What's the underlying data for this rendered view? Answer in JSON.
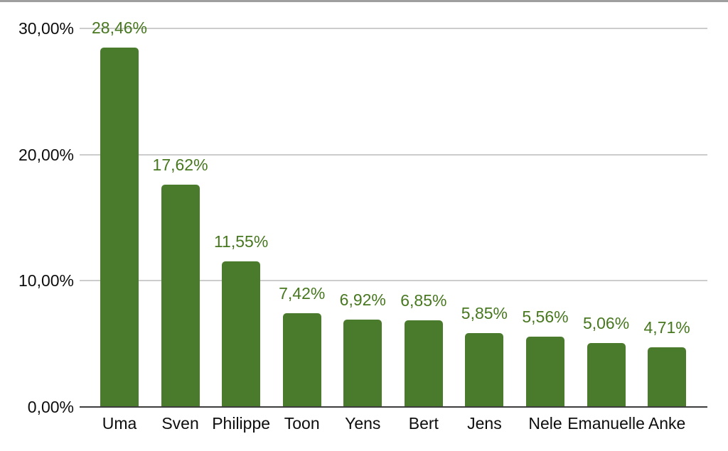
{
  "chart_data": {
    "type": "bar",
    "title": "",
    "xlabel": "",
    "ylabel": "",
    "categories": [
      "Uma",
      "Sven",
      "Philippe",
      "Toon",
      "Yens",
      "Bert",
      "Jens",
      "Nele",
      "Emanuelle",
      "Anke"
    ],
    "values": [
      28.46,
      17.62,
      11.55,
      7.42,
      6.92,
      6.85,
      5.85,
      5.56,
      5.06,
      4.71
    ],
    "value_labels": [
      "28,46%",
      "17,62%",
      "11,55%",
      "7,42%",
      "6,92%",
      "6,85%",
      "5,85%",
      "5,56%",
      "5,06%",
      "4,71%"
    ],
    "y_ticks": [
      {
        "label": "30,00%",
        "value": 30
      },
      {
        "label": "20,00%",
        "value": 20
      },
      {
        "label": "10,00%",
        "value": 10
      },
      {
        "label": "0,00%",
        "value": 0
      }
    ],
    "ylim": [
      0,
      30
    ],
    "grid": "horizontal",
    "legend": "none",
    "colors": {
      "bar": "#4a7a2b",
      "value_label": "#47771f",
      "axis_text": "#0d0d0d",
      "gridline": "#cccccc",
      "axis_line": "#3d3d3d",
      "background": "#ffffff",
      "window_edge": "#9f9f9f"
    }
  }
}
